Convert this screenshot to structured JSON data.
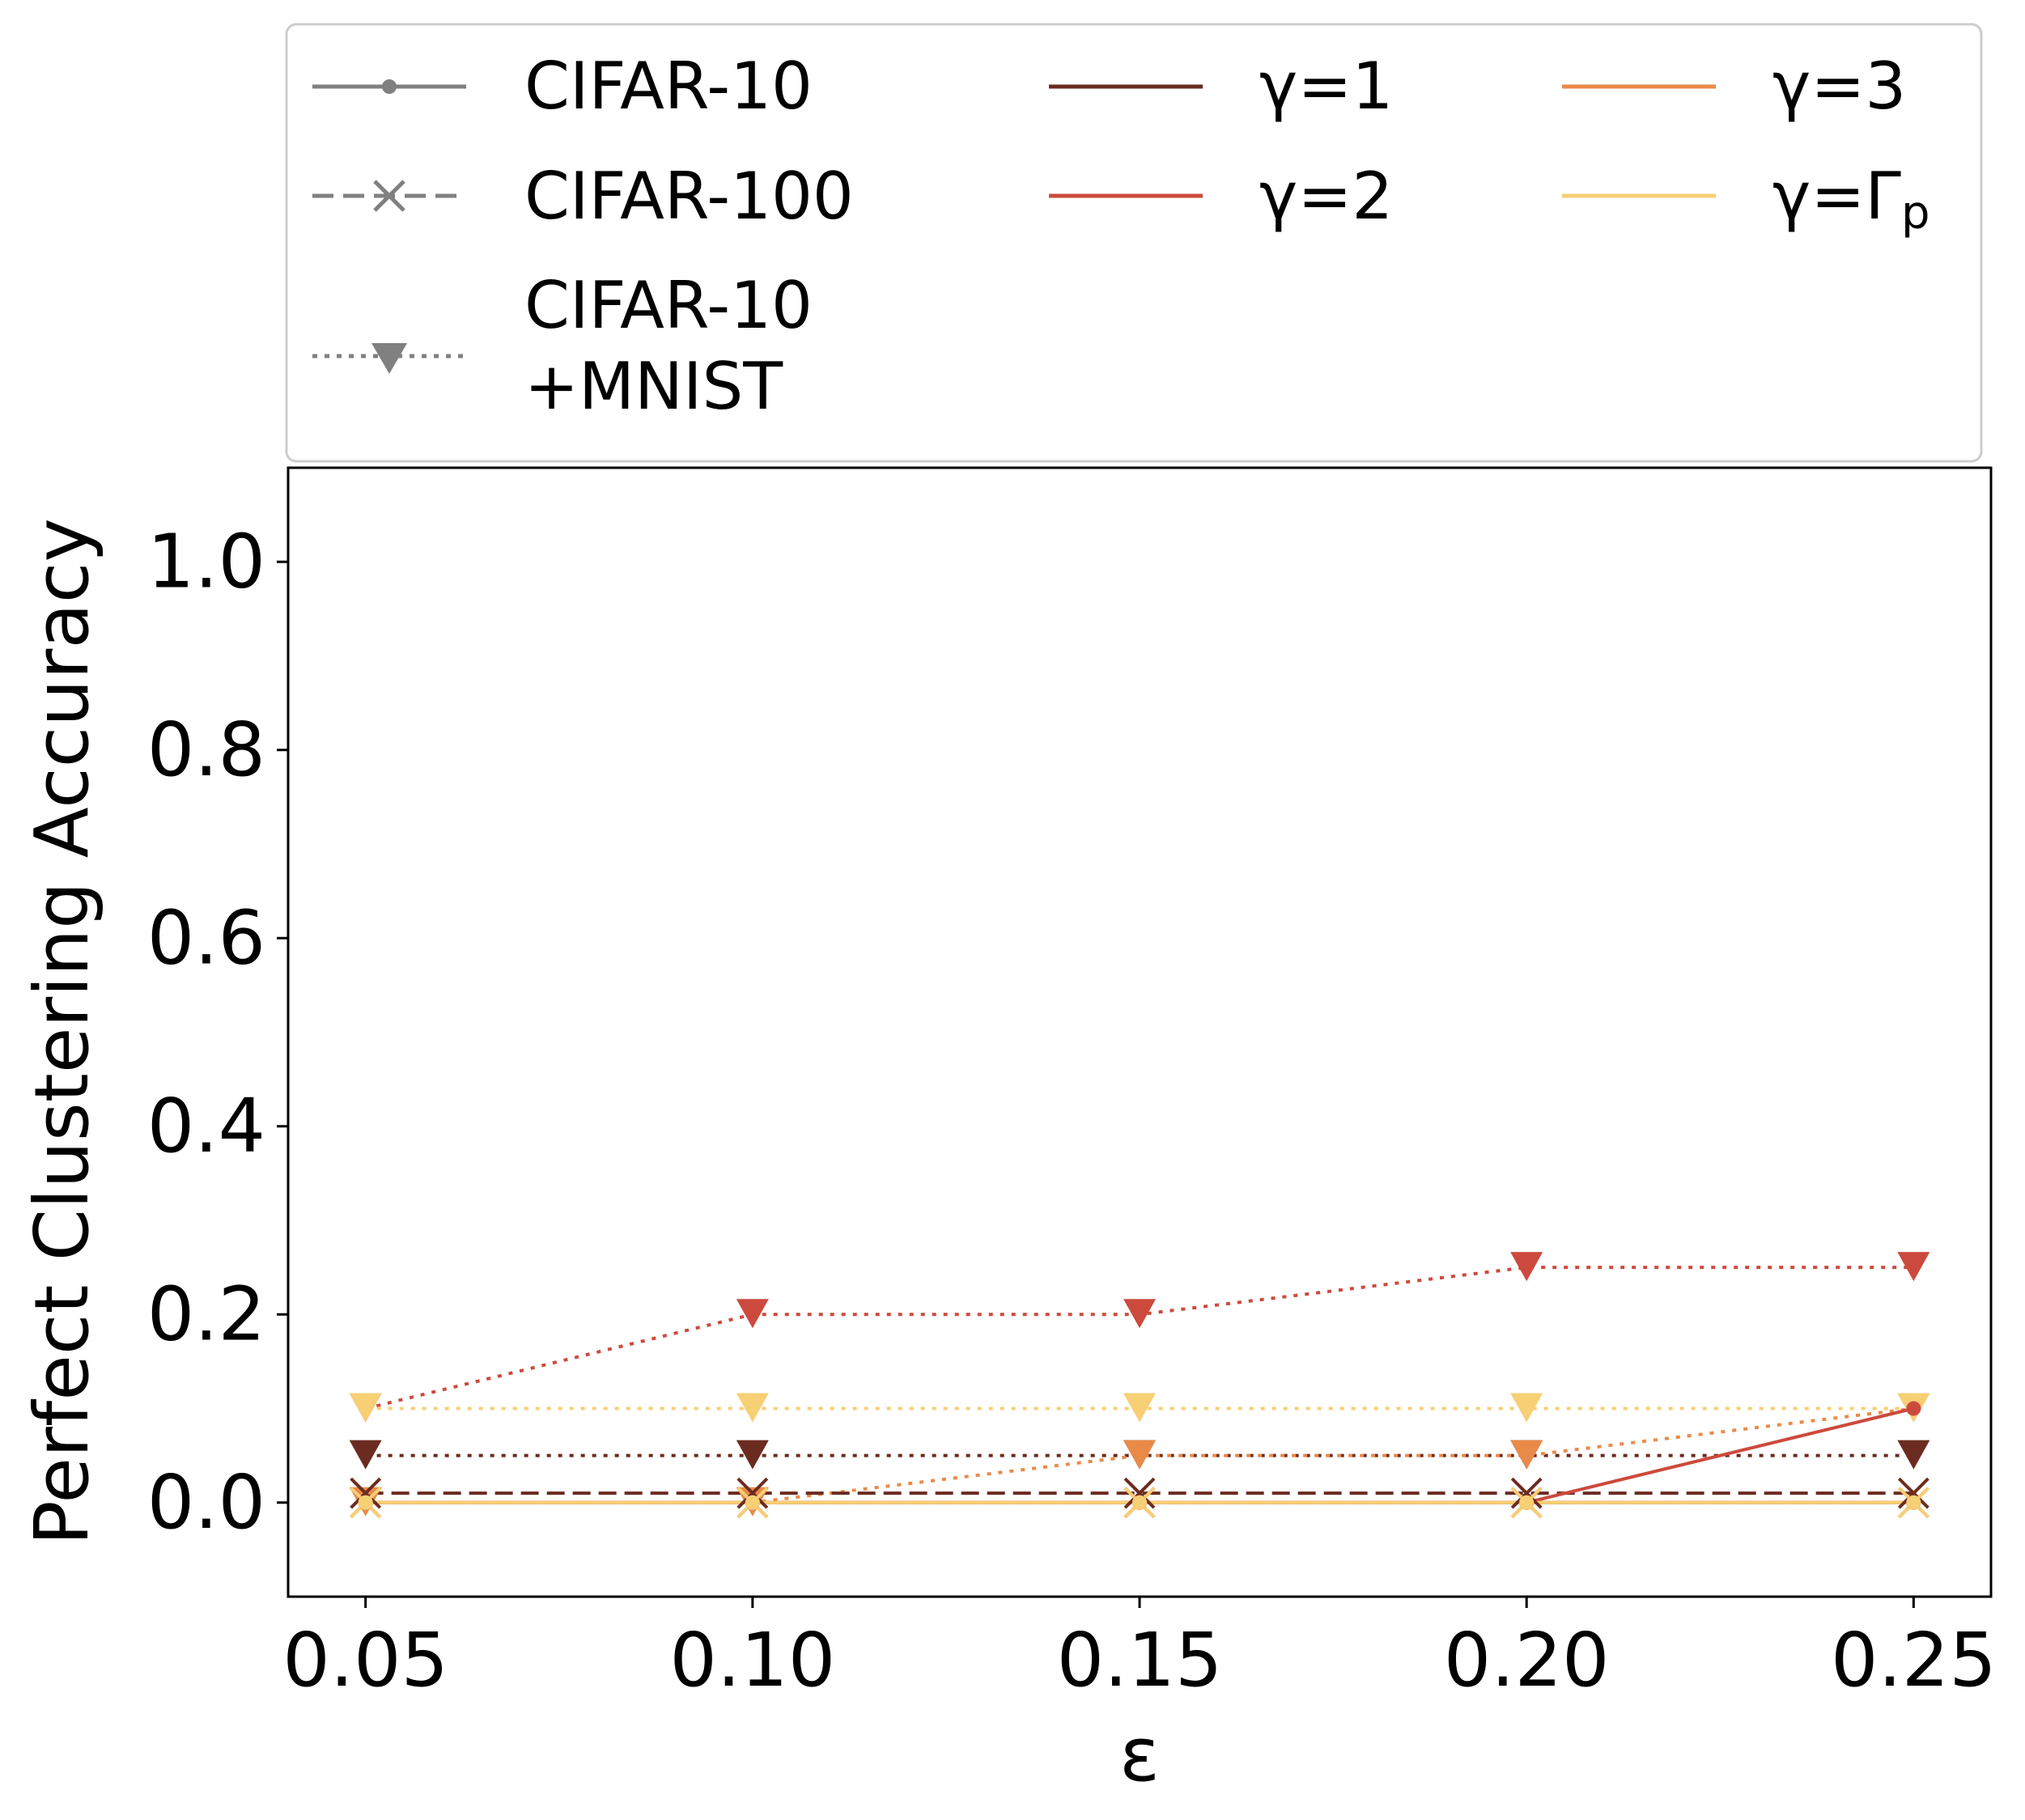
{
  "chart_data": {
    "type": "line",
    "xlabel": "ε",
    "ylabel": "Perfect Clustering Accuracy",
    "x": [
      0.05,
      0.1,
      0.15,
      0.2,
      0.25
    ],
    "xticks": [
      "0.05",
      "0.10",
      "0.15",
      "0.20",
      "0.25"
    ],
    "yticks": [
      "0.0",
      "0.2",
      "0.4",
      "0.6",
      "0.8",
      "1.0"
    ],
    "xlim": [
      0.04,
      0.26
    ],
    "ylim": [
      -0.1,
      1.1
    ],
    "grid": false,
    "legend_position": "top, above the plot",
    "datasets": [
      {
        "name": "CIFAR-10",
        "line_style": "solid",
        "marker": "circle"
      },
      {
        "name": "CIFAR-100",
        "line_style": "dashed",
        "marker": "x"
      },
      {
        "name": "CIFAR-10 +MNIST",
        "label_lines": [
          "CIFAR-10",
          "+MNIST"
        ],
        "line_style": "dotted",
        "marker": "triangle-down"
      }
    ],
    "gammas": [
      {
        "name": "γ=1",
        "color": "#6b2b20"
      },
      {
        "name": "γ=2",
        "color": "#cc4a3d"
      },
      {
        "name": "γ=3",
        "color": "#e98a48"
      },
      {
        "name": "γ=Γₚ",
        "label_main": "γ=Γ",
        "label_sub": "p",
        "color": "#f7cf75"
      }
    ],
    "series": [
      {
        "name": "CIFAR-10, γ=1",
        "dataset": "CIFAR-10",
        "gamma": "γ=1",
        "values": [
          0.0,
          0.0,
          0.0,
          0.0,
          0.0
        ]
      },
      {
        "name": "CIFAR-10, γ=2",
        "dataset": "CIFAR-10",
        "gamma": "γ=2",
        "values": [
          0.0,
          0.0,
          0.0,
          0.0,
          0.1
        ]
      },
      {
        "name": "CIFAR-10, γ=3",
        "dataset": "CIFAR-10",
        "gamma": "γ=3",
        "values": [
          0.0,
          0.0,
          0.0,
          0.0,
          0.0
        ]
      },
      {
        "name": "CIFAR-10, γ=Γp",
        "dataset": "CIFAR-10",
        "gamma": "γ=Γₚ",
        "values": [
          0.0,
          0.0,
          0.0,
          0.0,
          0.0
        ]
      },
      {
        "name": "CIFAR-100, γ=1",
        "dataset": "CIFAR-100",
        "gamma": "γ=1",
        "values": [
          0.01,
          0.01,
          0.01,
          0.01,
          0.01
        ]
      },
      {
        "name": "CIFAR-100, γ=2",
        "dataset": "CIFAR-100",
        "gamma": "γ=2",
        "values": [
          0.0,
          0.0,
          0.0,
          0.0,
          0.0
        ]
      },
      {
        "name": "CIFAR-100, γ=3",
        "dataset": "CIFAR-100",
        "gamma": "γ=3",
        "values": [
          0.0,
          0.0,
          0.0,
          0.0,
          0.0
        ]
      },
      {
        "name": "CIFAR-100, γ=Γp",
        "dataset": "CIFAR-100",
        "gamma": "γ=Γₚ",
        "values": [
          0.0,
          0.0,
          0.0,
          0.0,
          0.0
        ]
      },
      {
        "name": "CIFAR-10+MNIST, γ=1",
        "dataset": "CIFAR-10 +MNIST",
        "gamma": "γ=1",
        "values": [
          0.05,
          0.05,
          0.05,
          0.05,
          0.05
        ]
      },
      {
        "name": "CIFAR-10+MNIST, γ=2",
        "dataset": "CIFAR-10 +MNIST",
        "gamma": "γ=2",
        "values": [
          0.1,
          0.2,
          0.2,
          0.25,
          0.25
        ]
      },
      {
        "name": "CIFAR-10+MNIST, γ=3",
        "dataset": "CIFAR-10 +MNIST",
        "gamma": "γ=3",
        "values": [
          0.0,
          0.0,
          0.05,
          0.05,
          0.1
        ]
      },
      {
        "name": "CIFAR-10+MNIST, γ=Γp",
        "dataset": "CIFAR-10 +MNIST",
        "gamma": "γ=Γₚ",
        "values": [
          0.1,
          0.1,
          0.1,
          0.1,
          0.1
        ]
      }
    ]
  }
}
